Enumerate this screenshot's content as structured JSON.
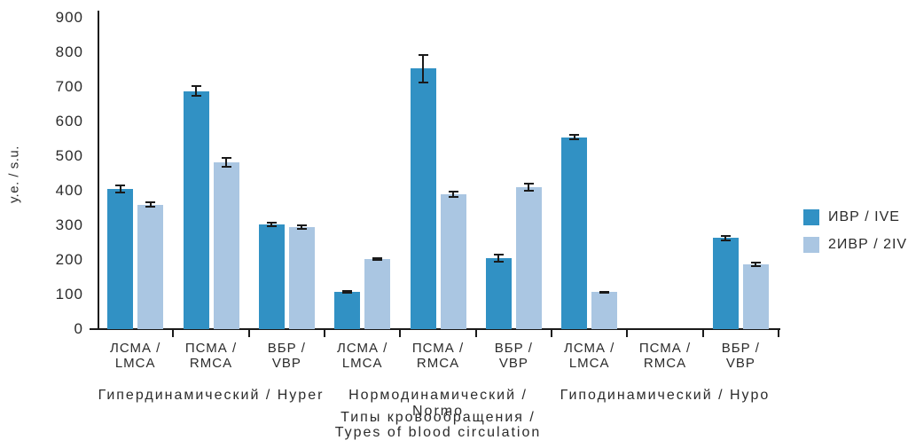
{
  "chart_data": {
    "type": "bar",
    "title": "",
    "ylabel": "у.е. / s.u.",
    "xlabel_lines": [
      "Типы кровообращения /",
      "Types of blood circulation"
    ],
    "ylim": [
      0,
      900
    ],
    "ytick_step": 100,
    "grid": false,
    "legend_position": "right",
    "series": [
      {
        "name": "ИВР / IVE",
        "color": "#3191c4"
      },
      {
        "name": "2ИВР / 2IVE",
        "color": "#aac6e2"
      }
    ],
    "error_bar_color": "#1a1a1a",
    "groups": [
      {
        "label": "Гипердинамический / Hyper",
        "categories": [
          {
            "label_lines": [
              "ЛСМА /",
              "LMCA"
            ],
            "values": [
              405,
              360
            ],
            "errors": [
              12,
              9
            ]
          },
          {
            "label_lines": [
              "ПСМА /",
              "RMCA"
            ],
            "values": [
              688,
              482
            ],
            "errors": [
              16,
              15
            ]
          },
          {
            "label_lines": [
              "ВБР /",
              "VBP"
            ],
            "values": [
              302,
              295
            ],
            "errors": [
              8,
              8
            ]
          }
        ]
      },
      {
        "label": "Нормодинамический / Normo",
        "categories": [
          {
            "label_lines": [
              "ЛСМА /",
              "LMCA"
            ],
            "values": [
              107,
              203
            ],
            "errors": [
              5,
              6
            ]
          },
          {
            "label_lines": [
              "ПСМА /",
              "RMCA"
            ],
            "values": [
              753,
              390
            ],
            "errors": [
              42,
              10
            ]
          },
          {
            "label_lines": [
              "ВБР /",
              "VBP"
            ],
            "values": [
              205,
              410
            ],
            "errors": [
              12,
              12
            ]
          }
        ]
      },
      {
        "label": "Гиподинамический / Hypo",
        "categories": [
          {
            "label_lines": [
              "ЛСМА /",
              "LMCA"
            ],
            "values": [
              555,
              107
            ],
            "errors": [
              8,
              4
            ]
          },
          {
            "label_lines": [
              "ПСМА /",
              "RMCA"
            ],
            "values": [
              null,
              null
            ],
            "errors": [
              null,
              null
            ]
          },
          {
            "label_lines": [
              "ВБР /",
              "VBP"
            ],
            "values": [
              263,
              187
            ],
            "errors": [
              10,
              7
            ]
          }
        ]
      }
    ]
  }
}
